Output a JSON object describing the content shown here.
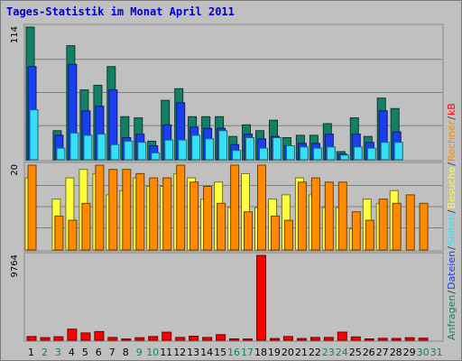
{
  "chart_data": {
    "type": "bar",
    "title": "Tages-Statistik im Monat April 2011",
    "categories": [
      "1",
      "2",
      "3",
      "4",
      "5",
      "6",
      "7",
      "8",
      "9",
      "10",
      "11",
      "12",
      "13",
      "14",
      "15",
      "16",
      "17",
      "18",
      "19",
      "20",
      "21",
      "22",
      "23",
      "24",
      "25",
      "26",
      "27",
      "28",
      "29",
      "30",
      "31"
    ],
    "weekend_days": [
      "2",
      "3",
      "9",
      "10",
      "16",
      "17",
      "23",
      "24",
      "30",
      "31"
    ],
    "panels": [
      {
        "name": "hits",
        "ytick": "114",
        "ymax": 114,
        "grid": true,
        "series": [
          {
            "name": "Anfragen",
            "color": "#138066",
            "values": [
              114,
              0,
              25,
              98,
              60,
              64,
              80,
              37,
              36,
              16,
              51,
              61,
              37,
              37,
              37,
              20,
              30,
              25,
              34,
              19,
              21,
              21,
              31,
              7,
              36,
              20,
              53,
              44
            ]
          },
          {
            "name": "Dateien",
            "color": "#1a3ff0",
            "values": [
              80,
              0,
              21,
              82,
              42,
              46,
              60,
              19,
              22,
              12,
              30,
              49,
              28,
              27,
              27,
              13,
              22,
              18,
              20,
              12,
              14,
              14,
              22,
              5,
              22,
              15,
              42,
              24
            ]
          },
          {
            "name": "Seiten",
            "color": "#33e0f8",
            "values": [
              43,
              0,
              10,
              23,
              21,
              22,
              13,
              16,
              15,
              6,
              17,
              17,
              21,
              18,
              25,
              8,
              19,
              10,
              19,
              12,
              11,
              10,
              11,
              4,
              11,
              10,
              15,
              15
            ]
          }
        ]
      },
      {
        "name": "visits",
        "ymax": 20,
        "ytick": "20",
        "grid": true,
        "series": [
          {
            "name": "Besuche",
            "color": "#ffff40",
            "values": [
              17,
              0,
              12,
              17,
              19,
              18,
              13,
              14,
              17,
              15,
              15,
              18,
              17,
              12,
              16,
              10,
              18,
              10,
              12,
              13,
              17,
              13,
              10,
              10,
              5,
              12,
              11,
              14
            ]
          },
          {
            "name": "Rechner",
            "color": "#ff8a00",
            "values": [
              20,
              0,
              8,
              7,
              11,
              20,
              19,
              19,
              18,
              17,
              17,
              20,
              16,
              15,
              11,
              20,
              9,
              20,
              8,
              7,
              16,
              17,
              16,
              16,
              9,
              7,
              12,
              11,
              13,
              11
            ]
          }
        ]
      },
      {
        "name": "traffic",
        "ymax": 9764,
        "ytick": "9764",
        "grid": false,
        "series": [
          {
            "name": "kB",
            "color": "#ff0000",
            "values": [
              430,
              300,
              400,
              1280,
              840,
              1000,
              320,
              150,
              290,
              430,
              920,
              320,
              470,
              320,
              640,
              160,
              150,
              9764,
              200,
              430,
              200,
              320,
              320,
              940,
              380,
              160,
              220,
              210,
              290,
              240
            ]
          }
        ]
      }
    ],
    "right_labels": [
      {
        "text": "Anfragen",
        "color": "#138066"
      },
      {
        "text": "/",
        "color": "#404040"
      },
      {
        "text": "Dateien",
        "color": "#1a3ff0"
      },
      {
        "text": "/",
        "color": "#404040"
      },
      {
        "text": "Seiten",
        "color": "#33e0f8"
      },
      {
        "text": "/",
        "color": "#404040"
      },
      {
        "text": "Besuche",
        "color": "#ffff40"
      },
      {
        "text": "/",
        "color": "#404040"
      },
      {
        "text": "Rechner",
        "color": "#ff8a00"
      },
      {
        "text": "/",
        "color": "#404040"
      },
      {
        "text": "kB",
        "color": "#ff0000"
      }
    ],
    "colors": {
      "background": "#c0c0c0",
      "title": "#0000cc",
      "weekday": "#000000",
      "weekend": "#138066"
    }
  }
}
